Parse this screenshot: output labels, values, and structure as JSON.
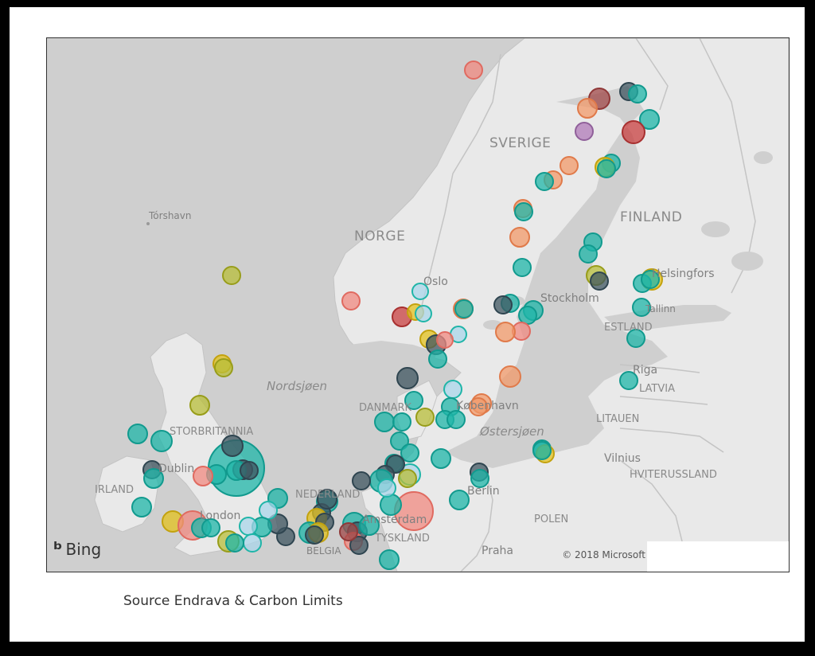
{
  "labels": {
    "torshavn": "Tórshavn",
    "norge": "NORGE",
    "sverige": "SVERIGE",
    "finland": "FINLAND",
    "oslo": "Oslo",
    "stockholm": "Stockholm",
    "helsingfors": "Helsingfors",
    "tallinn": "Tallinn",
    "estland": "ESTLAND",
    "riga": "Riga",
    "latvia": "LATVIA",
    "litauen": "LITAUEN",
    "vilnius": "Vilnius",
    "hviterussland": "HVITERUSSLAND",
    "nordsjoen": "Nordsjøen",
    "danmark": "DANMARK",
    "kobenhavn": "København",
    "ostersjoen": "Østersjøen",
    "storbritannia": "STORBRITANNIA",
    "dublin": "Dublin",
    "irland": "IRLAND",
    "london": "London",
    "nederland": "NEDERLAND",
    "amsterdam": "Amsterdam",
    "berlin": "Berlin",
    "polen": "POLEN",
    "tyskland": "TYSKLAND",
    "belgia": "BELGIA",
    "praha": "Praha"
  },
  "branding": {
    "bing": "Bing",
    "copyright": "© 2018 Microsoft"
  },
  "caption": "Source Endrava & Carbon Limits",
  "colors": {
    "teal": "#1fb5a8",
    "dark": "#3f5560",
    "salmon": "#f08a80",
    "orange": "#f29a6a",
    "yellow": "#e3c21e",
    "olive": "#b8bd3a",
    "lightblue": "#a9d6ea",
    "darkred": "#a04848",
    "purple": "#b07ab8"
  }
}
